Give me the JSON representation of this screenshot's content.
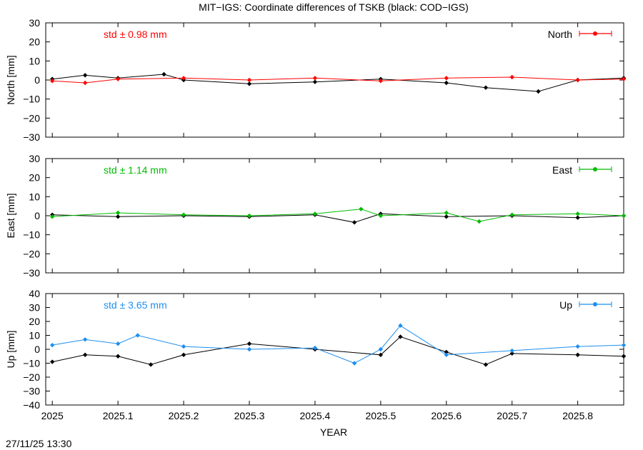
{
  "title": "MIT−IGS: Coordinate differences of TSKB (black: COD−IGS)",
  "xlabel": "YEAR",
  "timestamp": "27/11/25 13:30",
  "x_ticks": [
    "2025",
    "2025.1",
    "2025.2",
    "2025.3",
    "2025.4",
    "2025.5",
    "2025.6",
    "2025.7",
    "2025.8"
  ],
  "colors": {
    "black": "#000000",
    "north": "#ff0000",
    "east": "#00bb00",
    "up": "#1e8fef"
  },
  "chart_data": [
    {
      "type": "scatter",
      "panel": "north",
      "ylabel": "North [mm]",
      "legend": "North",
      "std_text": "std ± 0.98 mm",
      "ylim": [
        -30,
        30
      ],
      "y_ticks": [
        "30",
        "20",
        "10",
        "0",
        "−10",
        "−20",
        "−30"
      ],
      "xlim": [
        2024.99,
        2025.87
      ],
      "grid": false,
      "legend_position": "top-right",
      "series": [
        {
          "color": "#000000",
          "x": [
            2025.0,
            2025.05,
            2025.1,
            2025.17,
            2025.2,
            2025.3,
            2025.4,
            2025.5,
            2025.6,
            2025.66,
            2025.74,
            2025.8,
            2025.87
          ],
          "y": [
            0.5,
            2.5,
            1.0,
            3.0,
            0.0,
            -2.0,
            -1.0,
            0.5,
            -1.5,
            -4.0,
            -6.0,
            0.0,
            1.0
          ]
        },
        {
          "color": "#ff0000",
          "x": [
            2025.0,
            2025.05,
            2025.1,
            2025.2,
            2025.3,
            2025.4,
            2025.5,
            2025.6,
            2025.7,
            2025.8,
            2025.87
          ],
          "y": [
            -0.5,
            -1.5,
            0.5,
            1.0,
            0.0,
            1.0,
            -0.5,
            1.0,
            1.5,
            0.0,
            0.5
          ]
        }
      ]
    },
    {
      "type": "scatter",
      "panel": "east",
      "ylabel": "East [mm]",
      "legend": "East",
      "std_text": "std ± 1.14 mm",
      "ylim": [
        -30,
        30
      ],
      "y_ticks": [
        "30",
        "20",
        "10",
        "0",
        "−10",
        "−20",
        "−30"
      ],
      "xlim": [
        2024.99,
        2025.87
      ],
      "grid": false,
      "legend_position": "top-right",
      "series": [
        {
          "color": "#000000",
          "x": [
            2025.0,
            2025.1,
            2025.2,
            2025.3,
            2025.4,
            2025.46,
            2025.5,
            2025.6,
            2025.7,
            2025.8,
            2025.87
          ],
          "y": [
            0.5,
            -0.5,
            0.0,
            -0.5,
            0.5,
            -3.5,
            1.0,
            -0.5,
            0.0,
            -1.0,
            0.0
          ]
        },
        {
          "color": "#00bb00",
          "x": [
            2025.0,
            2025.1,
            2025.2,
            2025.3,
            2025.4,
            2025.47,
            2025.5,
            2025.6,
            2025.65,
            2025.7,
            2025.8,
            2025.87
          ],
          "y": [
            -0.5,
            1.5,
            0.5,
            0.0,
            1.0,
            3.5,
            0.0,
            1.5,
            -3.0,
            0.5,
            1.0,
            0.0
          ]
        }
      ]
    },
    {
      "type": "scatter",
      "panel": "up",
      "ylabel": "Up [mm]",
      "legend": "Up",
      "std_text": "std ± 3.65 mm",
      "ylim": [
        -40,
        40
      ],
      "y_ticks": [
        "40",
        "30",
        "20",
        "10",
        "0",
        "−10",
        "−20",
        "−30",
        "−40"
      ],
      "xlim": [
        2024.99,
        2025.87
      ],
      "grid": false,
      "legend_position": "top-right",
      "series": [
        {
          "color": "#000000",
          "x": [
            2025.0,
            2025.05,
            2025.1,
            2025.15,
            2025.2,
            2025.3,
            2025.4,
            2025.5,
            2025.53,
            2025.6,
            2025.66,
            2025.7,
            2025.8,
            2025.87
          ],
          "y": [
            -9.0,
            -4.0,
            -5.0,
            -11.0,
            -4.0,
            4.0,
            0.0,
            -4.0,
            9.0,
            -2.0,
            -11.0,
            -3.0,
            -4.0,
            -5.0
          ]
        },
        {
          "color": "#1e8fef",
          "x": [
            2025.0,
            2025.05,
            2025.1,
            2025.13,
            2025.2,
            2025.3,
            2025.4,
            2025.46,
            2025.5,
            2025.53,
            2025.6,
            2025.7,
            2025.8,
            2025.87
          ],
          "y": [
            3.0,
            7.0,
            4.0,
            10.0,
            2.0,
            0.0,
            1.0,
            -10.0,
            0.0,
            17.0,
            -4.0,
            -1.0,
            2.0,
            3.0
          ]
        }
      ]
    }
  ]
}
